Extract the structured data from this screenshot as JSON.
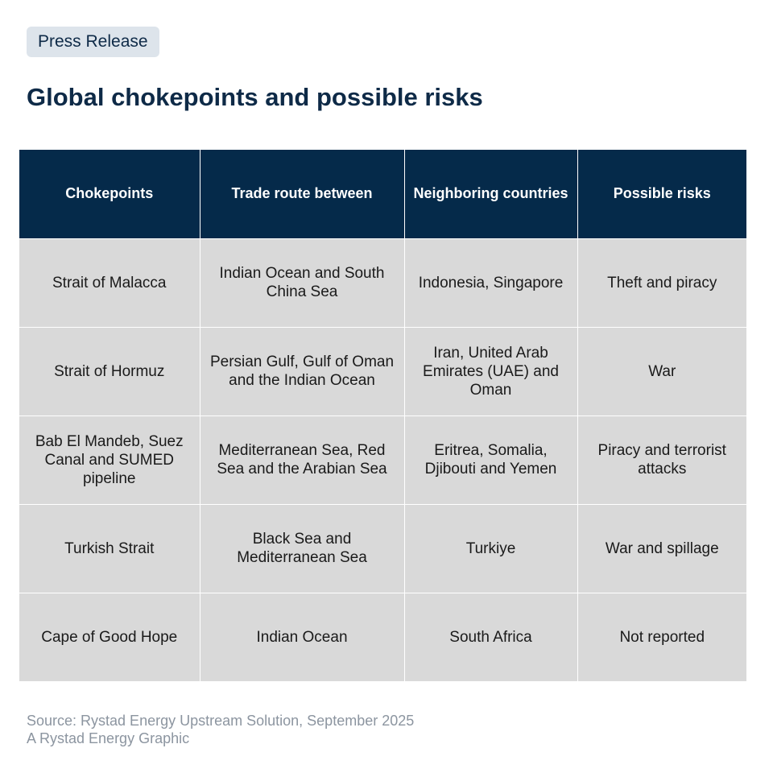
{
  "badge": "Press Release",
  "title": "Global chokepoints and possible risks",
  "table": {
    "headers": [
      "Chokepoints",
      "Trade route between",
      "Neighboring countries",
      "Possible risks"
    ],
    "rows": [
      [
        "Strait of Malacca",
        "Indian Ocean and South China Sea",
        "Indonesia, Singapore",
        "Theft and piracy"
      ],
      [
        "Strait of Hormuz",
        "Persian Gulf, Gulf of Oman and the Indian Ocean",
        "Iran, United Arab Emirates (UAE) and Oman",
        "War"
      ],
      [
        "Bab El Mandeb, Suez Canal and SUMED pipeline",
        "Mediterranean Sea, Red Sea and the Arabian Sea",
        "Eritrea, Somalia, Djibouti and Yemen",
        "Piracy and terrorist attacks"
      ],
      [
        "Turkish Strait",
        "Black Sea and Mediterranean Sea",
        "Turkiye",
        "War and spillage"
      ],
      [
        "Cape of Good Hope",
        "Indian Ocean",
        "South Africa",
        "Not reported"
      ]
    ]
  },
  "footer": {
    "source": "Source: Rystad Energy Upstream Solution, September 2025",
    "credit": "A Rystad Energy Graphic"
  },
  "colors": {
    "header_bg": "#052a4a",
    "cell_bg": "#d9d9d9",
    "title": "#0e2a47",
    "badge_bg": "#dde4eb",
    "footer_text": "#8c95a0"
  }
}
